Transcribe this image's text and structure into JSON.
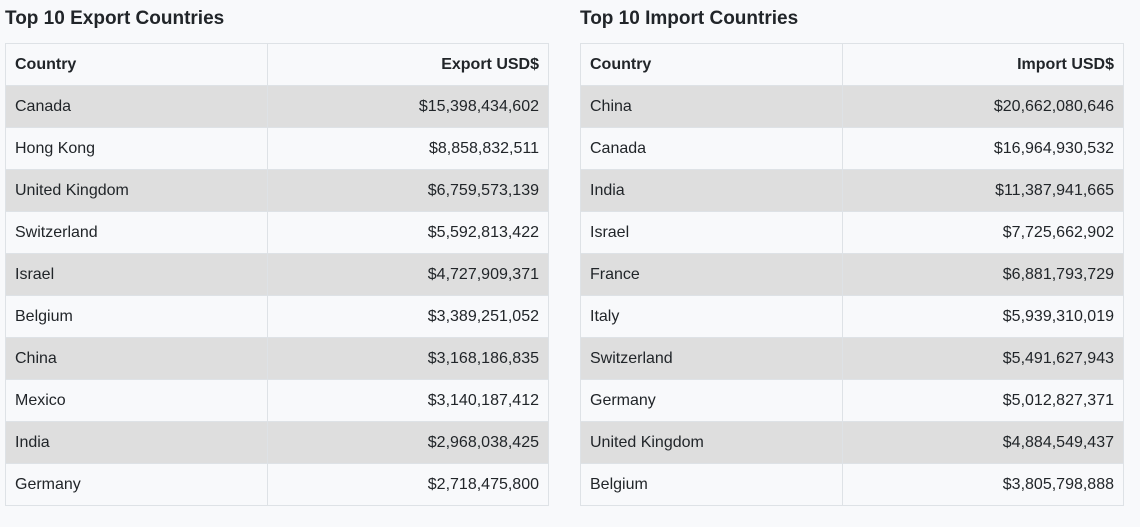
{
  "export_panel": {
    "title": "Top 10 Export Countries",
    "columns": [
      "Country",
      "Export USD$"
    ],
    "rows": [
      {
        "country": "Canada",
        "value": "$15,398,434,602"
      },
      {
        "country": "Hong Kong",
        "value": "$8,858,832,511"
      },
      {
        "country": "United Kingdom",
        "value": "$6,759,573,139"
      },
      {
        "country": "Switzerland",
        "value": "$5,592,813,422"
      },
      {
        "country": "Israel",
        "value": "$4,727,909,371"
      },
      {
        "country": "Belgium",
        "value": "$3,389,251,052"
      },
      {
        "country": "China",
        "value": "$3,168,186,835"
      },
      {
        "country": "Mexico",
        "value": "$3,140,187,412"
      },
      {
        "country": "India",
        "value": "$2,968,038,425"
      },
      {
        "country": "Germany",
        "value": "$2,718,475,800"
      }
    ]
  },
  "import_panel": {
    "title": "Top 10 Import Countries",
    "columns": [
      "Country",
      "Import USD$"
    ],
    "rows": [
      {
        "country": "China",
        "value": "$20,662,080,646"
      },
      {
        "country": "Canada",
        "value": "$16,964,930,532"
      },
      {
        "country": "India",
        "value": "$11,387,941,665"
      },
      {
        "country": "Israel",
        "value": "$7,725,662,902"
      },
      {
        "country": "France",
        "value": "$6,881,793,729"
      },
      {
        "country": "Italy",
        "value": "$5,939,310,019"
      },
      {
        "country": "Switzerland",
        "value": "$5,491,627,943"
      },
      {
        "country": "Germany",
        "value": "$5,012,827,371"
      },
      {
        "country": "United Kingdom",
        "value": "$4,884,549,437"
      },
      {
        "country": "Belgium",
        "value": "$3,805,798,888"
      }
    ]
  },
  "colors": {
    "background": "#f8f9fb",
    "stripe": "#dedede",
    "border": "#dee2e6",
    "text": "#212529"
  }
}
